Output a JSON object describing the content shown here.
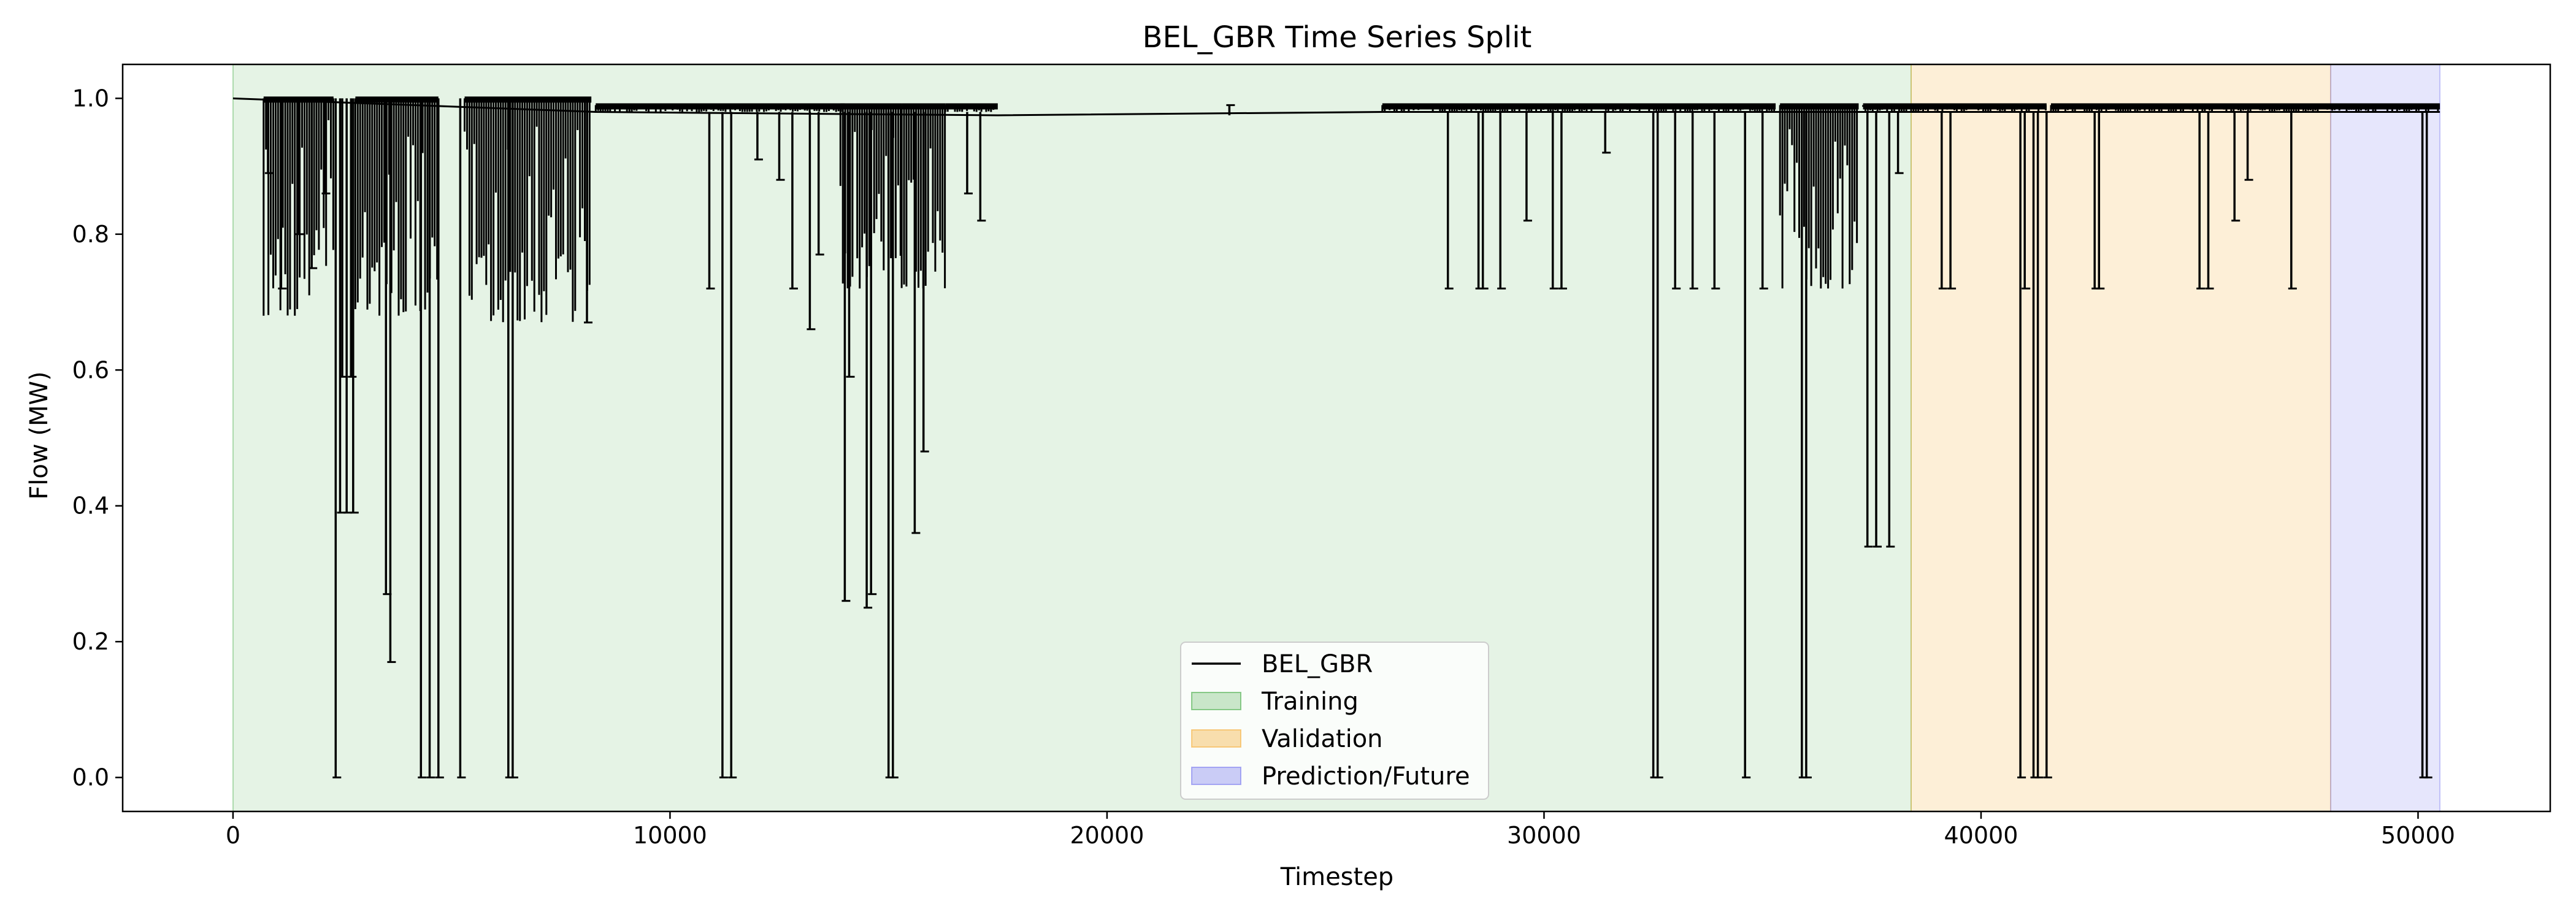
{
  "chart_data": {
    "type": "line",
    "title": "BEL_GBR Time Series Split",
    "xlabel": "Timestep",
    "ylabel": "Flow (MW)",
    "xlim": [
      -2525,
      53025
    ],
    "ylim": [
      -0.05,
      1.05
    ],
    "xticks": [
      0,
      10000,
      20000,
      30000,
      40000,
      50000
    ],
    "yticks": [
      0.0,
      0.2,
      0.4,
      0.6,
      0.8,
      1.0
    ],
    "xtick_labels": [
      "0",
      "10000",
      "20000",
      "30000",
      "40000",
      "50000"
    ],
    "ytick_labels": [
      "0.0",
      "0.2",
      "0.4",
      "0.6",
      "0.8",
      "1.0"
    ],
    "grid": false,
    "legend_position": "lower center",
    "regions": [
      {
        "name": "Training",
        "x_start": 0,
        "x_end": 38400,
        "color": "#2ca02c",
        "alpha": 0.12
      },
      {
        "name": "Validation",
        "x_start": 38400,
        "x_end": 48000,
        "color": "#f5a623",
        "alpha": 0.18
      },
      {
        "name": "Prediction/Future",
        "x_start": 48000,
        "x_end": 50500,
        "color": "#6666ee",
        "alpha": 0.16
      }
    ],
    "series": [
      {
        "name": "BEL_GBR",
        "color": "#000000",
        "baseline": [
          [
            0,
            1.0
          ],
          [
            8300,
            0.98
          ],
          [
            17500,
            0.975
          ],
          [
            26300,
            0.98
          ],
          [
            50500,
            0.98
          ]
        ],
        "dense_bands": [
          {
            "x_start": 700,
            "x_end": 2300,
            "y_low": 0.68,
            "y_high": 1.0
          },
          {
            "x_start": 2800,
            "x_end": 4700,
            "y_low": 0.68,
            "y_high": 1.0
          },
          {
            "x_start": 5300,
            "x_end": 8200,
            "y_low": 0.67,
            "y_high": 1.0
          },
          {
            "x_start": 8300,
            "x_end": 14000,
            "y_low": 0.98,
            "y_high": 0.99
          },
          {
            "x_start": 13900,
            "x_end": 15300,
            "y_low": 0.72,
            "y_high": 0.99
          },
          {
            "x_start": 15300,
            "x_end": 16300,
            "y_low": 0.72,
            "y_high": 0.99
          },
          {
            "x_start": 16300,
            "x_end": 17500,
            "y_low": 0.98,
            "y_high": 0.99
          },
          {
            "x_start": 26300,
            "x_end": 35300,
            "y_low": 0.98,
            "y_high": 0.99
          },
          {
            "x_start": 35400,
            "x_end": 37200,
            "y_low": 0.72,
            "y_high": 0.99
          },
          {
            "x_start": 37300,
            "x_end": 41500,
            "y_low": 0.98,
            "y_high": 0.99
          },
          {
            "x_start": 41600,
            "x_end": 50500,
            "y_low": 0.98,
            "y_high": 0.99
          }
        ],
        "spikes": [
          [
            800,
            0.89
          ],
          [
            1100,
            0.72
          ],
          [
            1500,
            0.8
          ],
          [
            1800,
            0.75
          ],
          [
            2100,
            0.86
          ],
          [
            2350,
            0.0
          ],
          [
            2450,
            0.39
          ],
          [
            2500,
            0.59
          ],
          [
            2600,
            0.39
          ],
          [
            2700,
            0.59
          ],
          [
            2750,
            0.39
          ],
          [
            3500,
            0.27
          ],
          [
            3600,
            0.17
          ],
          [
            4300,
            0.0
          ],
          [
            4500,
            0.0
          ],
          [
            4700,
            0.0
          ],
          [
            5200,
            0.0
          ],
          [
            6300,
            0.0
          ],
          [
            6400,
            0.0
          ],
          [
            8100,
            0.67
          ],
          [
            10900,
            0.72
          ],
          [
            11200,
            0.0
          ],
          [
            11400,
            0.0
          ],
          [
            12000,
            0.91
          ],
          [
            12500,
            0.88
          ],
          [
            12800,
            0.72
          ],
          [
            13200,
            0.66
          ],
          [
            13400,
            0.77
          ],
          [
            14000,
            0.26
          ],
          [
            14100,
            0.59
          ],
          [
            14500,
            0.25
          ],
          [
            14600,
            0.27
          ],
          [
            15000,
            0.0
          ],
          [
            15100,
            0.0
          ],
          [
            15600,
            0.36
          ],
          [
            15800,
            0.48
          ],
          [
            16800,
            0.86
          ],
          [
            17100,
            0.82
          ],
          [
            22800,
            0.99
          ],
          [
            27800,
            0.72
          ],
          [
            28500,
            0.72
          ],
          [
            28600,
            0.72
          ],
          [
            29000,
            0.72
          ],
          [
            29600,
            0.82
          ],
          [
            30200,
            0.72
          ],
          [
            30400,
            0.72
          ],
          [
            31400,
            0.92
          ],
          [
            32500,
            0.0
          ],
          [
            32600,
            0.0
          ],
          [
            33000,
            0.72
          ],
          [
            33400,
            0.72
          ],
          [
            33900,
            0.72
          ],
          [
            34600,
            0.0
          ],
          [
            35000,
            0.72
          ],
          [
            35900,
            0.0
          ],
          [
            36000,
            0.0
          ],
          [
            37400,
            0.34
          ],
          [
            37600,
            0.34
          ],
          [
            37900,
            0.34
          ],
          [
            38100,
            0.89
          ],
          [
            39100,
            0.72
          ],
          [
            39300,
            0.72
          ],
          [
            40900,
            0.0
          ],
          [
            41000,
            0.72
          ],
          [
            41200,
            0.0
          ],
          [
            41300,
            0.0
          ],
          [
            41500,
            0.0
          ],
          [
            42600,
            0.72
          ],
          [
            42700,
            0.72
          ],
          [
            45000,
            0.72
          ],
          [
            45200,
            0.72
          ],
          [
            45800,
            0.82
          ],
          [
            46100,
            0.88
          ],
          [
            47100,
            0.72
          ],
          [
            50100,
            0.0
          ],
          [
            50200,
            0.0
          ]
        ]
      }
    ]
  }
}
